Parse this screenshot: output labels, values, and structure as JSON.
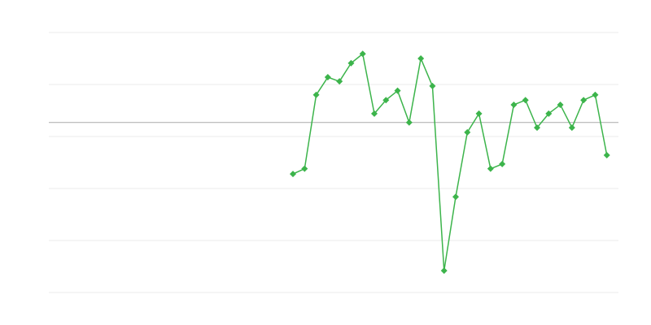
{
  "chart_data": {
    "type": "line",
    "title": "",
    "xlabel": "",
    "ylabel": "",
    "xlim": [
      0,
      49
    ],
    "ylim": [
      0,
      5
    ],
    "grid": true,
    "gridlines_y": [
      0,
      1,
      2,
      3,
      4,
      5
    ],
    "baseline_y": 3.27,
    "marker": "diamond",
    "colors": {
      "series": "#3cb44b",
      "grid": "#ebebeb",
      "baseline": "#aaaaaa"
    },
    "series": [
      {
        "x": [
          21,
          22,
          23,
          24,
          25,
          26,
          27,
          28,
          29,
          30,
          31,
          32,
          33,
          34,
          35,
          36,
          37,
          38,
          39,
          40,
          41,
          42,
          43,
          44,
          45,
          46,
          47,
          48
        ],
        "values": [
          2.28,
          2.38,
          3.8,
          4.14,
          4.06,
          4.41,
          4.59,
          3.44,
          3.7,
          3.88,
          3.27,
          4.5,
          3.97,
          0.42,
          1.84,
          3.08,
          3.44,
          2.38,
          2.47,
          3.61,
          3.7,
          3.17,
          3.44,
          3.61,
          3.17,
          3.7,
          3.8,
          2.64
        ]
      }
    ]
  }
}
